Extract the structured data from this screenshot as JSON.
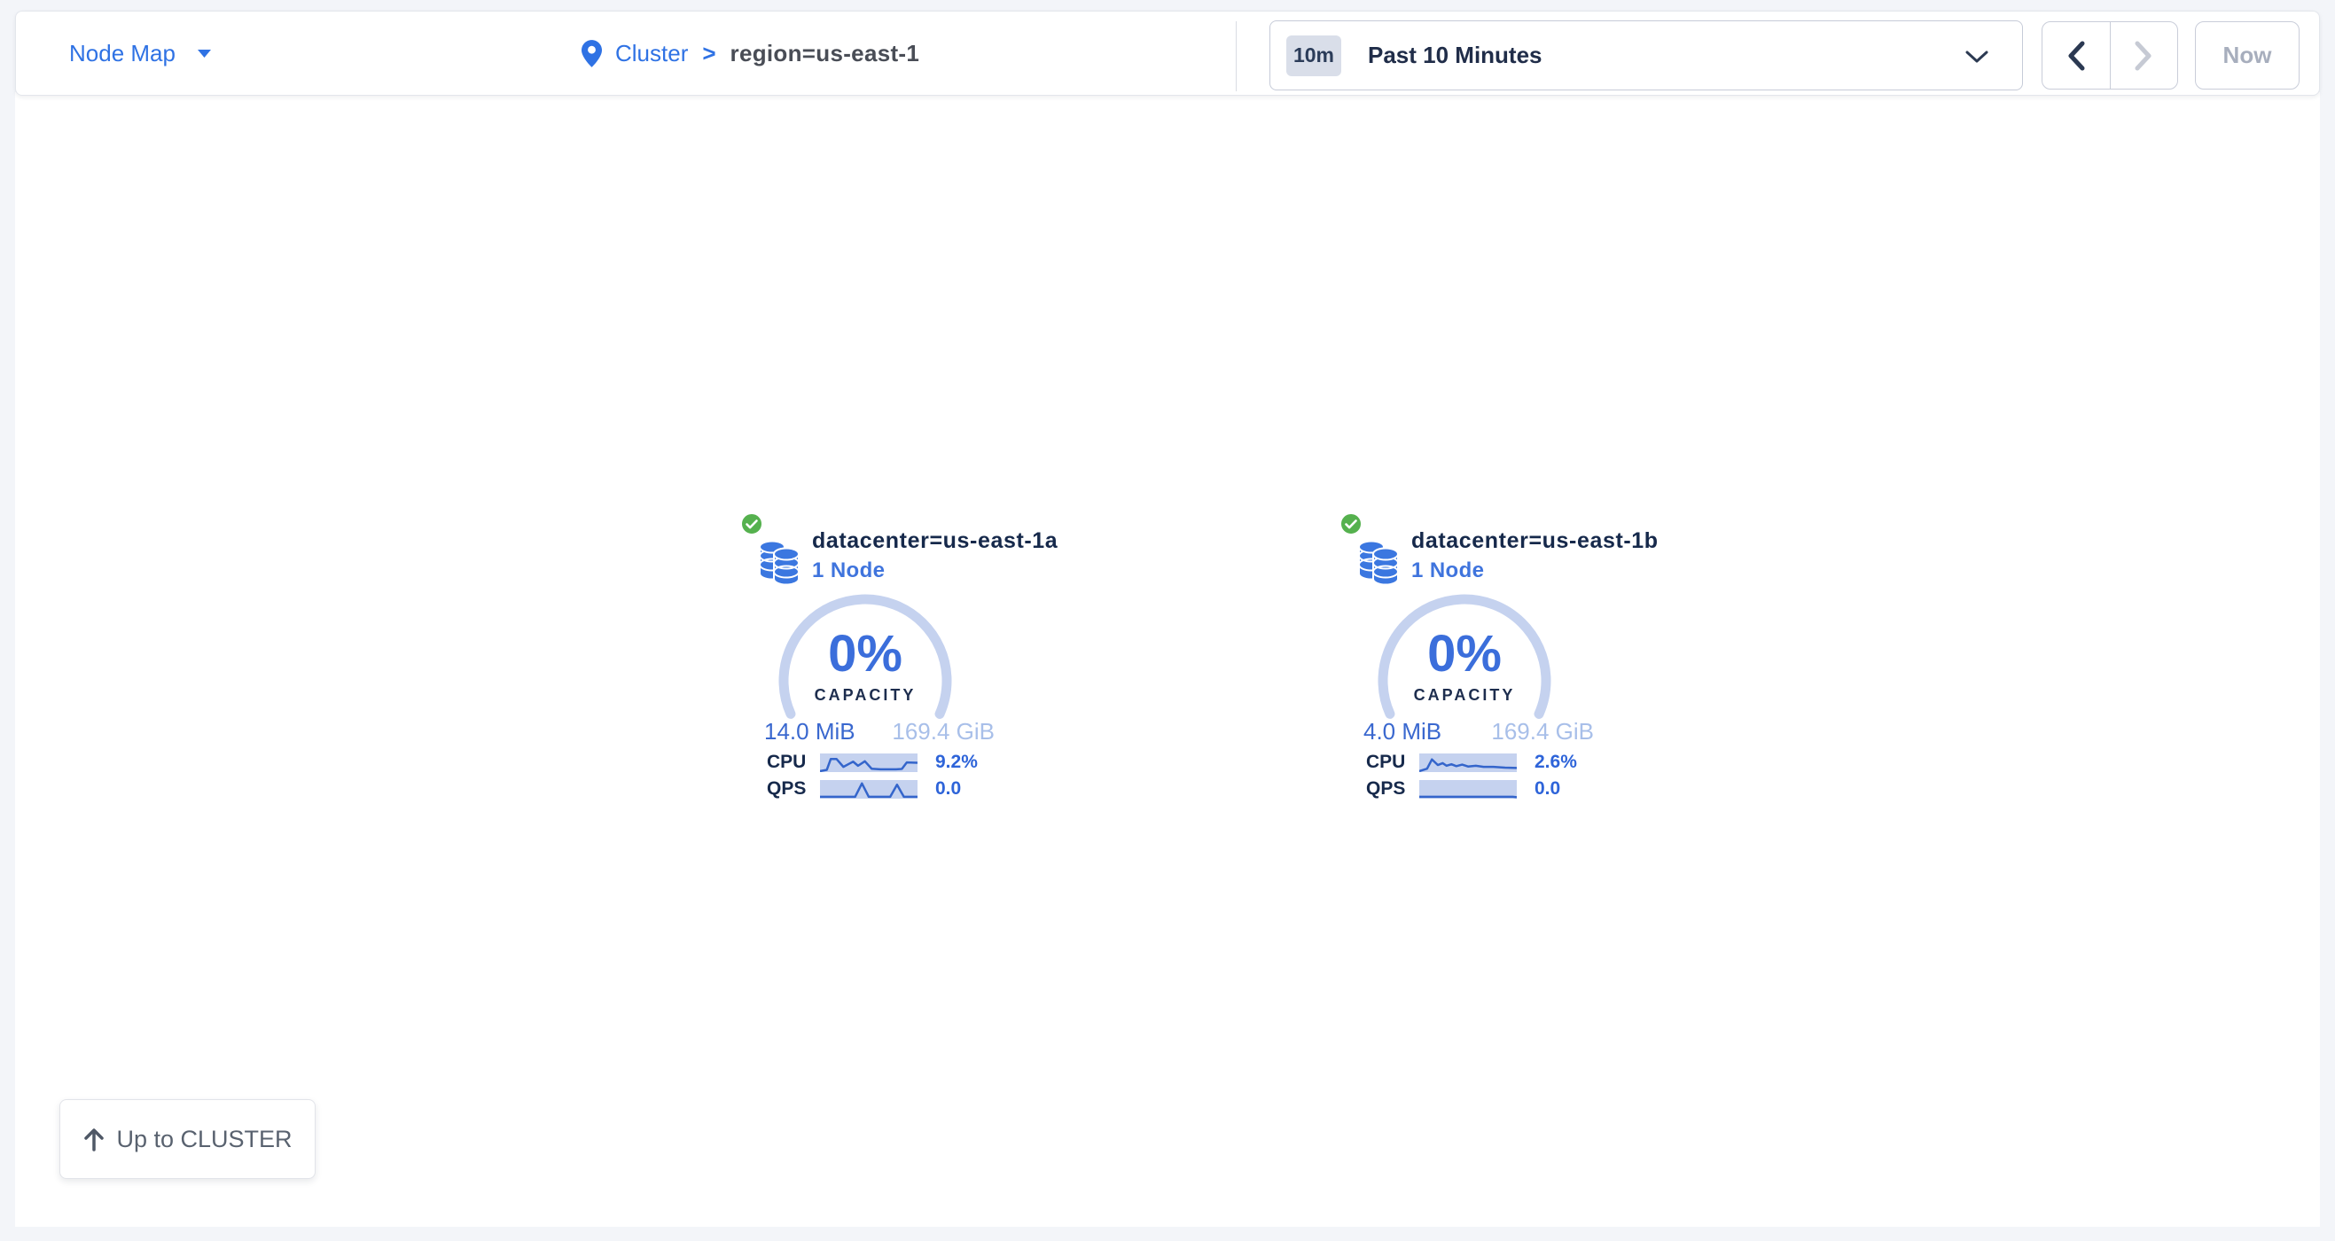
{
  "header": {
    "view_selector": {
      "label": "Node Map"
    },
    "breadcrumb": {
      "root": "Cluster",
      "separator": ">",
      "current": "region=us-east-1"
    },
    "time_window": {
      "badge": "10m",
      "label": "Past 10 Minutes"
    },
    "nav": {
      "now_label": "Now"
    }
  },
  "cards": [
    {
      "status": "healthy",
      "title": "datacenter=us-east-1a",
      "subtitle": "1 Node",
      "capacity_percent": "0%",
      "capacity_label": "CAPACITY",
      "used": "14.0 MiB",
      "total": "169.4 GiB",
      "cpu": {
        "label": "CPU",
        "value": "9.2%",
        "points": [
          [
            0,
            95
          ],
          [
            7,
            88
          ],
          [
            11,
            30
          ],
          [
            17,
            30
          ],
          [
            24,
            72
          ],
          [
            30,
            55
          ],
          [
            34,
            44
          ],
          [
            39,
            66
          ],
          [
            46,
            42
          ],
          [
            53,
            82
          ],
          [
            62,
            85
          ],
          [
            78,
            85
          ],
          [
            84,
            83
          ],
          [
            89,
            48
          ],
          [
            100,
            50
          ]
        ]
      },
      "qps": {
        "label": "QPS",
        "value": "0.0",
        "points": [
          [
            0,
            90
          ],
          [
            36,
            90
          ],
          [
            43,
            18
          ],
          [
            50,
            90
          ],
          [
            72,
            90
          ],
          [
            79,
            25
          ],
          [
            86,
            90
          ],
          [
            100,
            90
          ]
        ]
      }
    },
    {
      "status": "healthy",
      "title": "datacenter=us-east-1b",
      "subtitle": "1 Node",
      "capacity_percent": "0%",
      "capacity_label": "CAPACITY",
      "used": "4.0 MiB",
      "total": "169.4 GiB",
      "cpu": {
        "label": "CPU",
        "value": "2.6%",
        "points": [
          [
            0,
            95
          ],
          [
            8,
            82
          ],
          [
            13,
            32
          ],
          [
            19,
            62
          ],
          [
            24,
            52
          ],
          [
            28,
            66
          ],
          [
            33,
            58
          ],
          [
            38,
            68
          ],
          [
            44,
            60
          ],
          [
            50,
            70
          ],
          [
            58,
            66
          ],
          [
            66,
            72
          ],
          [
            76,
            72
          ],
          [
            88,
            76
          ],
          [
            100,
            78
          ]
        ]
      },
      "qps": {
        "label": "QPS",
        "value": "0.0",
        "points": [
          [
            0,
            90
          ],
          [
            96,
            90
          ],
          [
            100,
            92
          ]
        ]
      }
    }
  ],
  "footer": {
    "up_button_label": "Up to CLUSTER"
  },
  "colors": {
    "accent_blue": "#2f72e4",
    "gauge_blue": "#3b6edb",
    "arc": "#c5d2ef",
    "spark_bg": "#c5d2ef",
    "spark_line": "#3465cb",
    "healthy_green": "#55b14e",
    "navy": "#16294b",
    "muted": "#a7aebd"
  }
}
